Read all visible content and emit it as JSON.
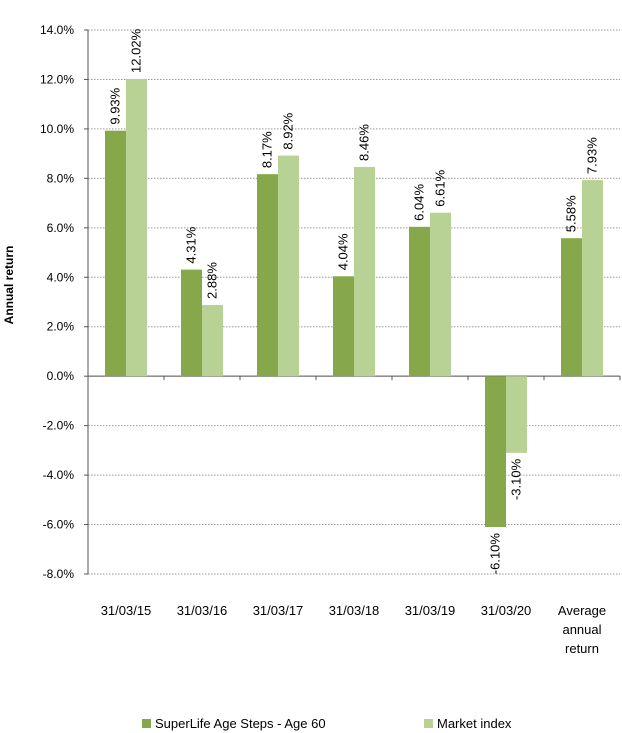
{
  "chart_data": {
    "type": "bar",
    "categories": [
      "31/03/15",
      "31/03/16",
      "31/03/17",
      "31/03/18",
      "31/03/19",
      "31/03/20",
      "Average annual return"
    ],
    "category_lines": [
      [
        "31/03/15"
      ],
      [
        "31/03/16"
      ],
      [
        "31/03/17"
      ],
      [
        "31/03/18"
      ],
      [
        "31/03/19"
      ],
      [
        "31/03/20"
      ],
      [
        "Average",
        "annual",
        "return"
      ]
    ],
    "series": [
      {
        "name": "SuperLife Age Steps - Age 60",
        "values": [
          9.93,
          4.31,
          8.17,
          4.04,
          6.04,
          -6.1,
          5.58
        ],
        "labels": [
          "9.93%",
          "4.31%",
          "8.17%",
          "4.04%",
          "6.04%",
          "-6.10%",
          "5.58%"
        ],
        "color": "#86a84b"
      },
      {
        "name": "Market index",
        "values": [
          12.02,
          2.88,
          8.92,
          8.46,
          6.61,
          -3.1,
          7.93
        ],
        "labels": [
          "12.02%",
          "2.88%",
          "8.92%",
          "8.46%",
          "6.61%",
          "-3.10%",
          "7.93%"
        ],
        "color": "#b8d195"
      }
    ],
    "ylabel": "Annual return",
    "ylim": [
      -8,
      14
    ],
    "yticks": [
      14,
      12,
      10,
      8,
      6,
      4,
      2,
      0,
      -2,
      -4,
      -6,
      -8
    ],
    "ytick_labels": [
      "14.0%",
      "12.0%",
      "10.0%",
      "8.0%",
      "6.0%",
      "4.0%",
      "2.0%",
      "0.0%",
      "-2.0%",
      "-4.0%",
      "-6.0%",
      "-8.0%"
    ],
    "grid": true,
    "legend": "bottom"
  }
}
